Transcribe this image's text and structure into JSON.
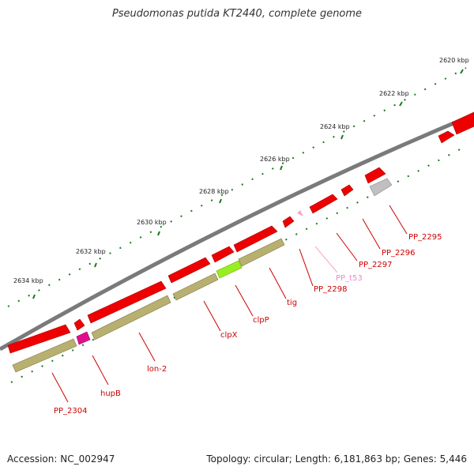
{
  "title": "Pseudomonas putida KT2440, complete genome",
  "footer": {
    "accession": "Accession: NC_002947",
    "summary": "Topology: circular; Length: 6,181,863 bp; Genes: 5,446"
  },
  "scale_labels": [
    "2620 kbp",
    "2622 kbp",
    "2624 kbp",
    "2626 kbp",
    "2628 kbp",
    "2630 kbp",
    "2632 kbp",
    "2634 kbp"
  ],
  "genes": [
    {
      "name": "PP_2295",
      "color": "#cc0000"
    },
    {
      "name": "PP_2296",
      "color": "#cc0000"
    },
    {
      "name": "PP_2297",
      "color": "#cc0000"
    },
    {
      "name": "PP_t53",
      "color": "#ee88cc"
    },
    {
      "name": "PP_2298",
      "color": "#cc0000"
    },
    {
      "name": "tig",
      "color": "#cc0000"
    },
    {
      "name": "clpP",
      "color": "#cc0000"
    },
    {
      "name": "clpX",
      "color": "#cc0000"
    },
    {
      "name": "lon-2",
      "color": "#cc0000"
    },
    {
      "name": "hupB",
      "color": "#cc0000"
    },
    {
      "name": "PP_2304",
      "color": "#cc0000"
    }
  ],
  "colors": {
    "backbone": "#7a7a7a",
    "gene_arrow": "#ee0000",
    "cds_bar": "#b8b070",
    "trna": "#f4a8c8",
    "misc_feature": "#c0c0c0",
    "highlight_bar": "#99ee22",
    "magenta_feature": "#e0108c",
    "tick": "#1a7a1a"
  }
}
